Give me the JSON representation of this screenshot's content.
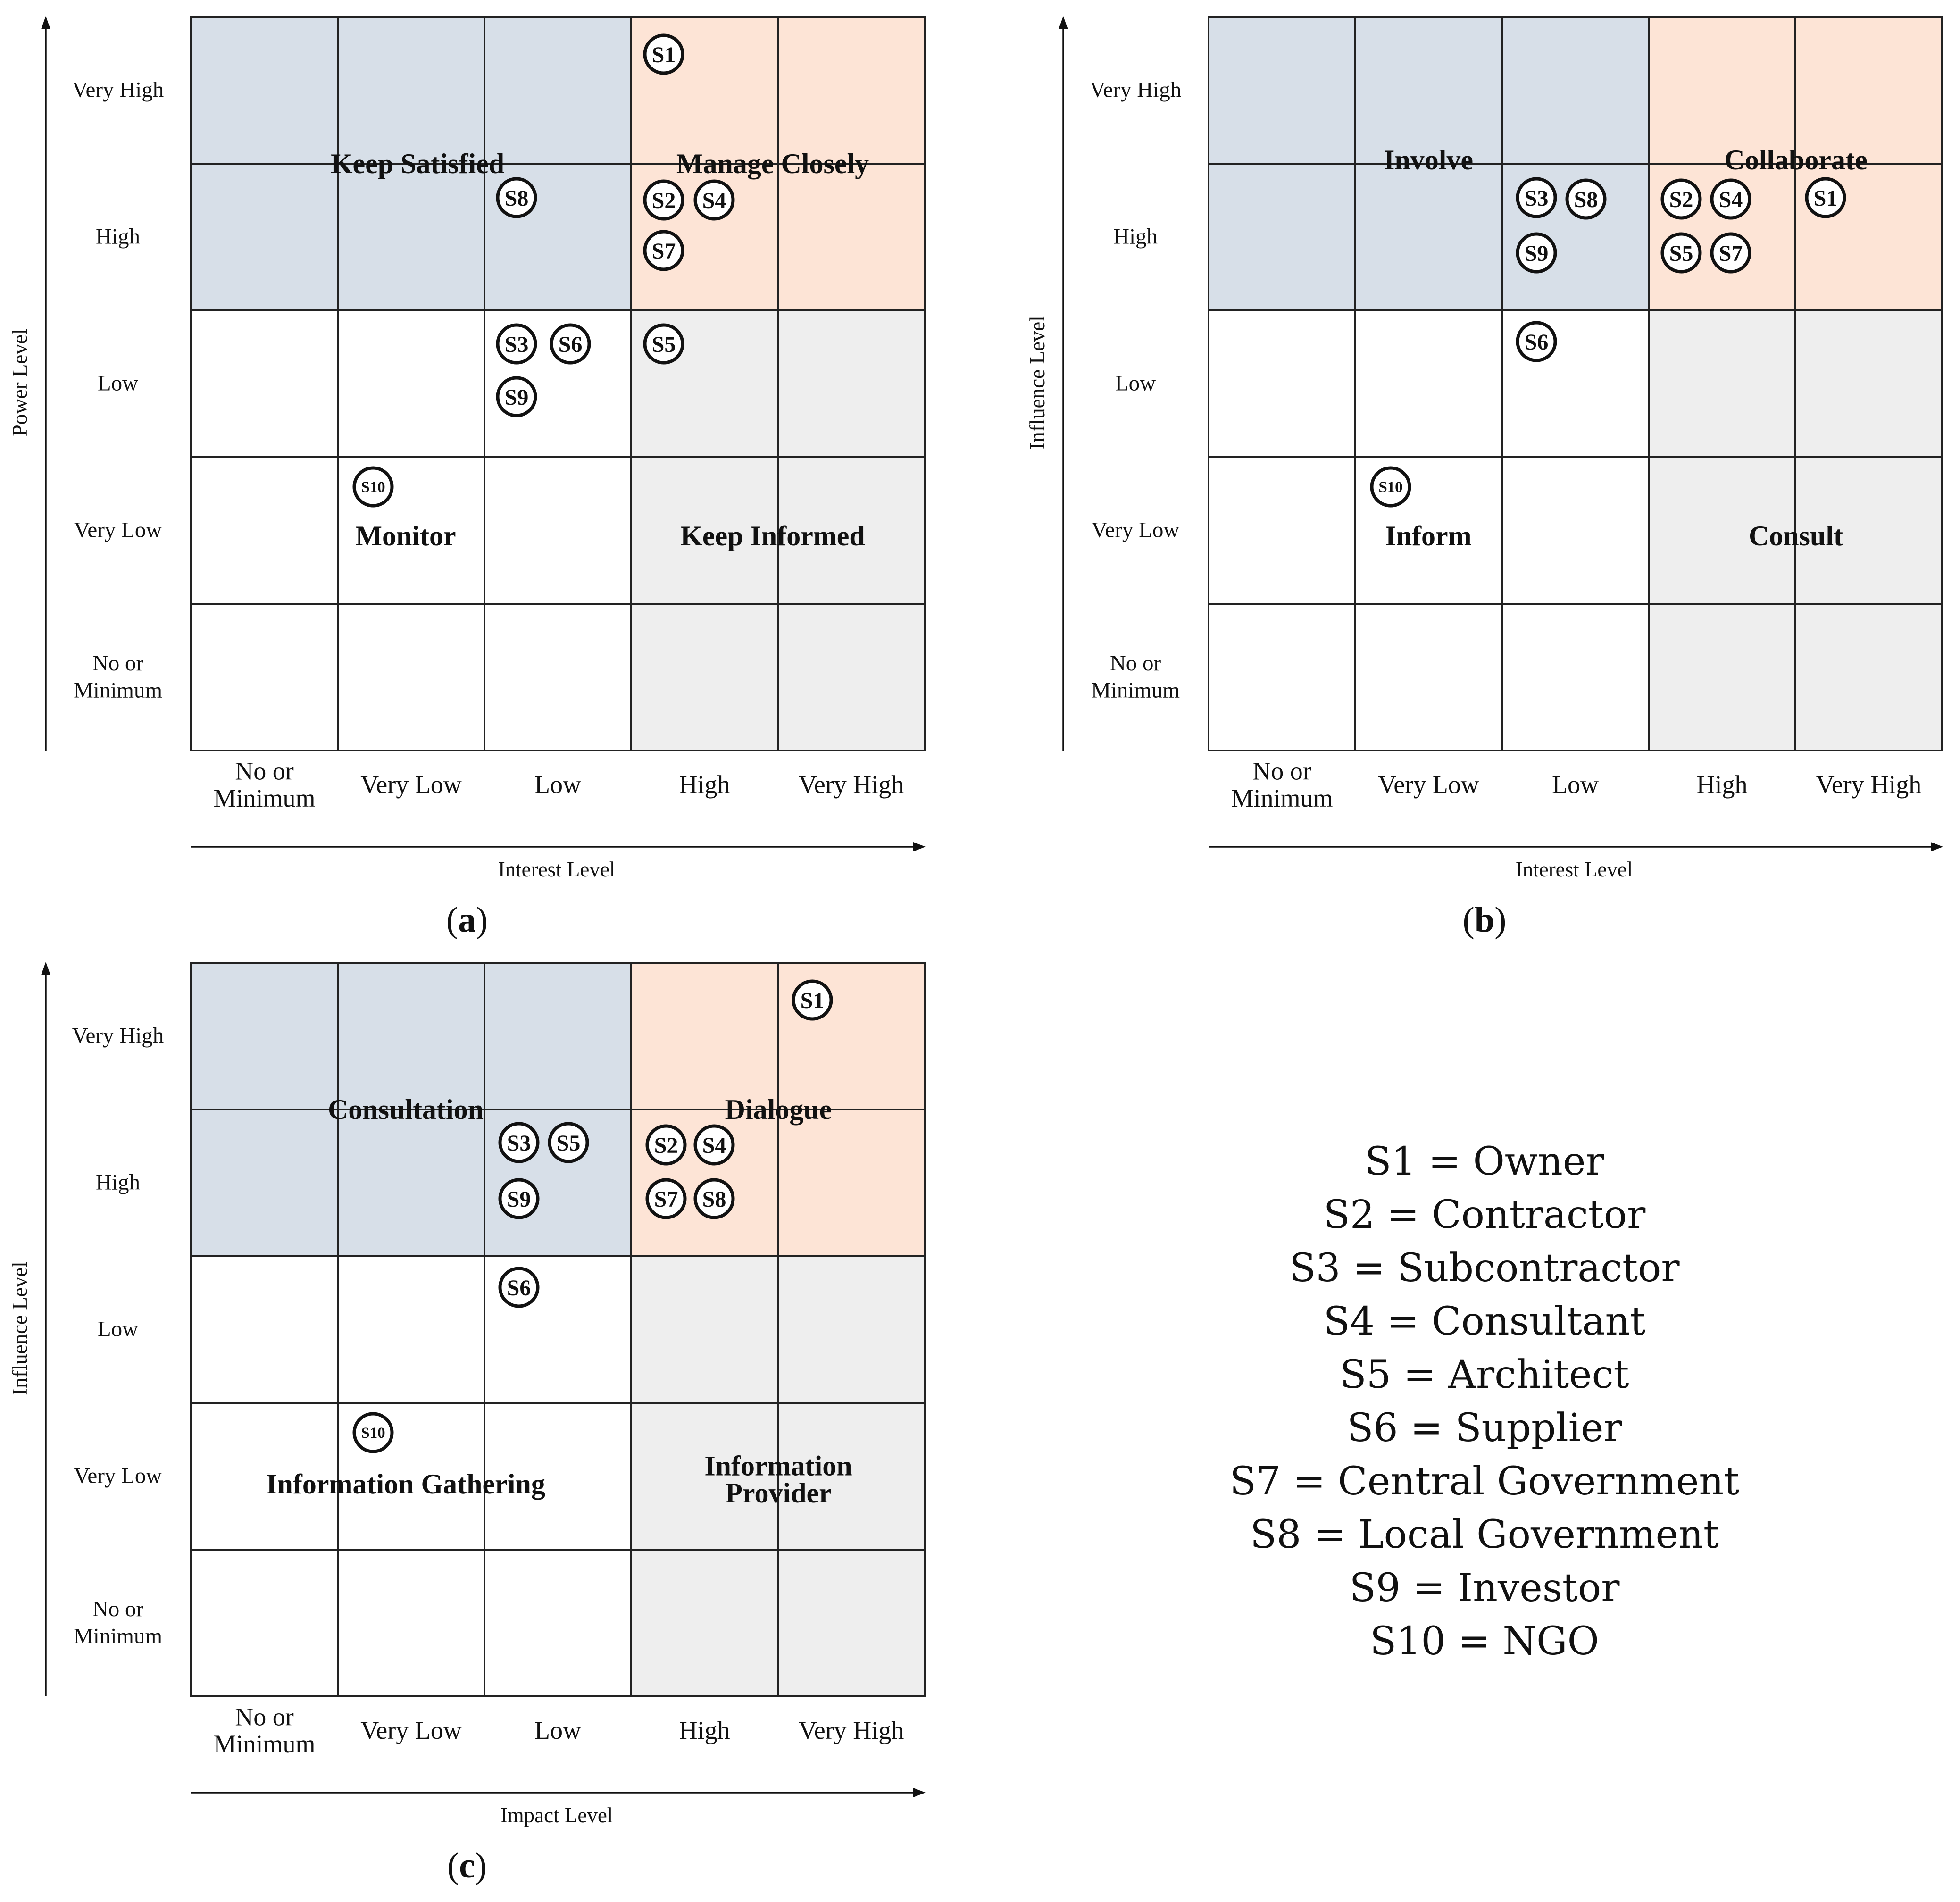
{
  "colors": {
    "blue_zone": "#d7dfe8",
    "orange_zone": "#fde4d6",
    "gray_zone": "#eeeeee",
    "white_zone": "#ffffff",
    "line": "#222222"
  },
  "level_names": [
    "No or Minimum",
    "Very Low",
    "Low",
    "High",
    "Very High"
  ],
  "panels": [
    {
      "id": "a",
      "caption": "a",
      "y_axis_title": "Power Level",
      "x_axis_title": "Interest Level",
      "y_tick_labels": [
        "Very High",
        "High",
        "Low",
        "Very Low",
        "No or\nMinimum"
      ],
      "x_tick_labels": [
        "No or\nMinimum",
        "Very Low",
        "Low",
        "High",
        "Very High"
      ],
      "zones": [
        {
          "name": "Keep Satisfied",
          "color": "blue"
        },
        {
          "name": "Manage Closely",
          "color": "orange"
        },
        {
          "name": "Monitor",
          "color": "white"
        },
        {
          "name": "Keep Informed",
          "color": "gray"
        }
      ],
      "stakeholders": [
        {
          "id": "S1",
          "x": "High",
          "y": "Very High"
        },
        {
          "id": "S2",
          "x": "High",
          "y": "High"
        },
        {
          "id": "S3",
          "x": "Low",
          "y": "Low"
        },
        {
          "id": "S4",
          "x": "High",
          "y": "High"
        },
        {
          "id": "S5",
          "x": "High",
          "y": "Low"
        },
        {
          "id": "S6",
          "x": "Low",
          "y": "Low"
        },
        {
          "id": "S7",
          "x": "High",
          "y": "High"
        },
        {
          "id": "S8",
          "x": "Low",
          "y": "High"
        },
        {
          "id": "S9",
          "x": "Low",
          "y": "Low"
        },
        {
          "id": "S10",
          "x": "Very Low",
          "y": "Very Low"
        }
      ]
    },
    {
      "id": "b",
      "caption": "b",
      "y_axis_title": "Influence Level",
      "x_axis_title": "Interest Level",
      "y_tick_labels": [
        "Very High",
        "High",
        "Low",
        "Very Low",
        "No or\nMinimum"
      ],
      "x_tick_labels": [
        "No or\nMinimum",
        "Very Low",
        "Low",
        "High",
        "Very High"
      ],
      "zones": [
        {
          "name": "Involve",
          "color": "blue"
        },
        {
          "name": "Collaborate",
          "color": "orange"
        },
        {
          "name": "Inform",
          "color": "white"
        },
        {
          "name": "Consult",
          "color": "gray"
        }
      ],
      "stakeholders": [
        {
          "id": "S1",
          "x": "Very High",
          "y": "High"
        },
        {
          "id": "S2",
          "x": "High",
          "y": "High"
        },
        {
          "id": "S3",
          "x": "Low",
          "y": "High"
        },
        {
          "id": "S4",
          "x": "High",
          "y": "High"
        },
        {
          "id": "S5",
          "x": "High",
          "y": "High"
        },
        {
          "id": "S6",
          "x": "Low",
          "y": "Low"
        },
        {
          "id": "S7",
          "x": "High",
          "y": "High"
        },
        {
          "id": "S8",
          "x": "Low",
          "y": "High"
        },
        {
          "id": "S9",
          "x": "Low",
          "y": "High"
        },
        {
          "id": "S10",
          "x": "Very Low",
          "y": "Very Low"
        }
      ]
    },
    {
      "id": "c",
      "caption": "c",
      "y_axis_title": "Influence Level",
      "x_axis_title": "Impact Level",
      "y_tick_labels": [
        "Very High",
        "High",
        "Low",
        "Very Low",
        "No or\nMinimum"
      ],
      "x_tick_labels": [
        "No or\nMinimum",
        "Very Low",
        "Low",
        "High",
        "Very High"
      ],
      "zones": [
        {
          "name": "Consultation",
          "color": "blue"
        },
        {
          "name": "Dialogue",
          "color": "orange"
        },
        {
          "name": "Information Gathering",
          "color": "white"
        },
        {
          "name": "Information\nProvider",
          "color": "gray"
        }
      ],
      "stakeholders": [
        {
          "id": "S1",
          "x": "Very High",
          "y": "Very High"
        },
        {
          "id": "S2",
          "x": "High",
          "y": "High"
        },
        {
          "id": "S3",
          "x": "Low",
          "y": "High"
        },
        {
          "id": "S4",
          "x": "High",
          "y": "High"
        },
        {
          "id": "S5",
          "x": "Low",
          "y": "High"
        },
        {
          "id": "S6",
          "x": "Low",
          "y": "Low"
        },
        {
          "id": "S7",
          "x": "High",
          "y": "High"
        },
        {
          "id": "S8",
          "x": "High",
          "y": "High"
        },
        {
          "id": "S9",
          "x": "Low",
          "y": "High"
        },
        {
          "id": "S10",
          "x": "Very Low",
          "y": "Very Low"
        }
      ]
    }
  ],
  "legend": [
    "S1 = Owner",
    "S2 = Contractor",
    "S3 = Subcontractor",
    "S4 = Consultant",
    "S5 = Architect",
    "S6 = Supplier",
    "S7 = Central Government",
    "S8 = Local Government",
    "S9 = Investor",
    "S10 = NGO"
  ]
}
